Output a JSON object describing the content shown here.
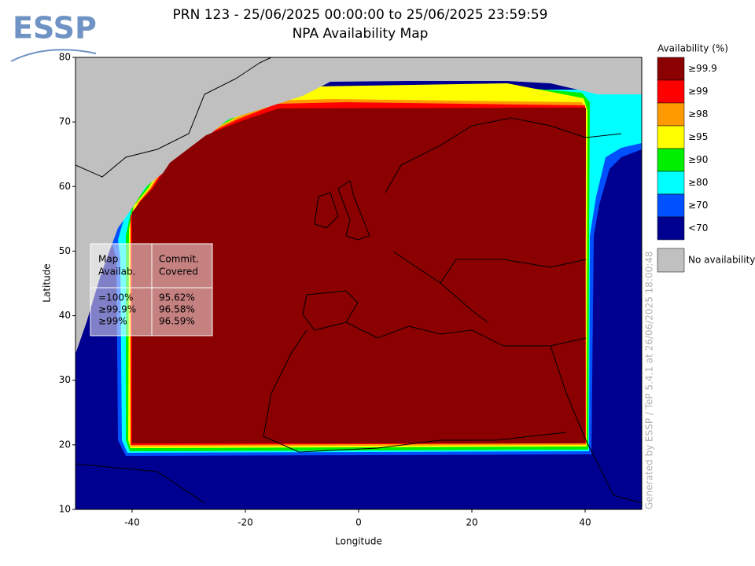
{
  "logo": "ESSP",
  "map": {
    "title": "PRN 123 - 25/06/2025 00:00:00 to 25/06/2025 23:59:59",
    "subtitle": "NPA Availability Map",
    "xlabel": "Longitude",
    "ylabel": "Latitude",
    "xlim": [
      -50,
      50
    ],
    "ylim": [
      10,
      80
    ],
    "xticks": [
      -40,
      -20,
      0,
      20,
      40
    ],
    "yticks": [
      10,
      20,
      30,
      40,
      50,
      60,
      70,
      80
    ],
    "legend": {
      "title": "Availability (%)",
      "entries": [
        {
          "label": "≥99.9",
          "color": "#8b0000"
        },
        {
          "label": "≥99",
          "color": "#ff0000"
        },
        {
          "label": "≥98",
          "color": "#ff9900"
        },
        {
          "label": "≥95",
          "color": "#ffff00"
        },
        {
          "label": "≥90",
          "color": "#00ee00"
        },
        {
          "label": "≥80",
          "color": "#00ffff"
        },
        {
          "label": "≥70",
          "color": "#0050ff"
        },
        {
          "label": "<70",
          "color": "#000090"
        }
      ],
      "no_availability": {
        "label": "No availability",
        "color": "#c0c0c0"
      }
    },
    "table": {
      "headers": [
        [
          "Map",
          "Availab."
        ],
        [
          "Commit.",
          "Covered"
        ]
      ],
      "rows": [
        [
          "=100%",
          "95.62%"
        ],
        [
          "≥99.9%",
          "96.58%"
        ],
        [
          "≥99%",
          "96.59%"
        ]
      ]
    },
    "footer": "Generated by ESSP / TeP 5.4.1 at 26/06/2025 18:00:48"
  }
}
